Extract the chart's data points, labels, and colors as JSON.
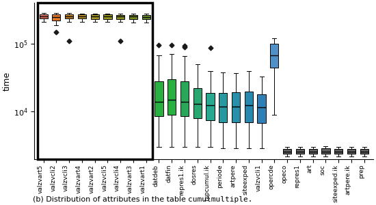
{
  "categories": [
    "valzvart5",
    "valzvcli2",
    "valzvcli3",
    "valzvart4",
    "valzvart2",
    "valzvcli5",
    "valzvcli4",
    "valzvart3",
    "valzvart1",
    "datdeb",
    "datfin",
    "repres1.ik",
    "dosres",
    "typcumul.ik",
    "periode",
    "artpere",
    "siteexped",
    "valzvcli1",
    "opercde",
    "opeco",
    "repres1",
    "art",
    "soc",
    "siteexped.ik",
    "artpere.ik",
    "prep"
  ],
  "box_data": {
    "valzvart5": [
      210000,
      235000,
      255000,
      270000,
      285000
    ],
    "valzvcli2": [
      185000,
      220000,
      248000,
      268000,
      282000
    ],
    "valzvcli3": [
      208000,
      235000,
      255000,
      270000,
      283000
    ],
    "valzvart4": [
      210000,
      235000,
      252000,
      268000,
      280000
    ],
    "valzvart2": [
      210000,
      233000,
      252000,
      268000,
      280000
    ],
    "valzvcli5": [
      210000,
      233000,
      253000,
      268000,
      280000
    ],
    "valzvcli4": [
      210000,
      233000,
      252000,
      267000,
      279000
    ],
    "valzvart3": [
      205000,
      230000,
      250000,
      265000,
      278000
    ],
    "valzvart1": [
      203000,
      228000,
      247000,
      263000,
      275000
    ],
    "datdeb": [
      3000,
      8500,
      14000,
      28000,
      68000
    ],
    "datfin": [
      3000,
      9000,
      15000,
      30000,
      70000
    ],
    "repres1.ik": [
      3000,
      8500,
      14000,
      28000,
      66000
    ],
    "dosres": [
      3000,
      8000,
      13000,
      22000,
      50000
    ],
    "typcumul.ik": [
      3000,
      7500,
      12500,
      19000,
      40000
    ],
    "periode": [
      2900,
      7000,
      12000,
      19000,
      38000
    ],
    "artpere": [
      2900,
      7000,
      12000,
      19500,
      37000
    ],
    "siteexped": [
      2900,
      7000,
      12500,
      20000,
      40000
    ],
    "valzvcli1": [
      2900,
      6800,
      11500,
      18000,
      33000
    ],
    "opercde": [
      9000,
      45000,
      68000,
      100000,
      120000
    ],
    "opeco": [
      2200,
      2400,
      2600,
      2800,
      3000
    ],
    "repres1": [
      2200,
      2400,
      2600,
      2800,
      3000
    ],
    "art": [
      2200,
      2400,
      2600,
      2800,
      3000
    ],
    "soc": [
      2200,
      2400,
      2600,
      2900,
      3100
    ],
    "siteexped.ik": [
      2200,
      2400,
      2600,
      2800,
      3000
    ],
    "artpere.ik": [
      2200,
      2400,
      2600,
      2800,
      3000
    ],
    "prep": [
      2200,
      2400,
      2600,
      2800,
      3000
    ]
  },
  "outliers": {
    "valzvcli2": [
      148000
    ],
    "valzvcli3": [
      110000
    ],
    "valzvcli4": [
      110000
    ],
    "datdeb": [
      95000
    ],
    "datfin": [
      95000
    ],
    "repres1.ik": [
      90000,
      93000
    ],
    "typcumul.ik": [
      88000
    ]
  },
  "colors": {
    "valzvart5": "#e07060",
    "valzvcli2": "#e07828",
    "valzvcli3": "#c88828",
    "valzvart4": "#b89028",
    "valzvart2": "#a89828",
    "valzvcli5": "#989820",
    "valzvcli4": "#889018",
    "valzvart3": "#789020",
    "valzvart1": "#689028",
    "datdeb": "#28b040",
    "datfin": "#28b040",
    "repres1.ik": "#28a858",
    "dosres": "#28a870",
    "typcumul.ik": "#28a890",
    "periode": "#2898a0",
    "artpere": "#2890a8",
    "siteexped": "#2888b0",
    "valzvcli1": "#3080b8",
    "opercde": "#5090c8",
    "opeco": "#606060",
    "repres1": "#606060",
    "art": "#606060",
    "soc": "#606060",
    "siteexped.ik": "#606060",
    "artpere.ik": "#606060",
    "prep": "#606060"
  },
  "ylabel": "time",
  "ylim_log": [
    2000,
    400000
  ],
  "yticks": [
    10000,
    100000
  ],
  "ytick_labels": [
    "$10^4$",
    "$10^5$"
  ],
  "caption_prefix": "(b) Distribution of attributes in the table ",
  "caption_mono": "cumulmultiple",
  "caption_suffix": ".",
  "boxed_count": 9
}
